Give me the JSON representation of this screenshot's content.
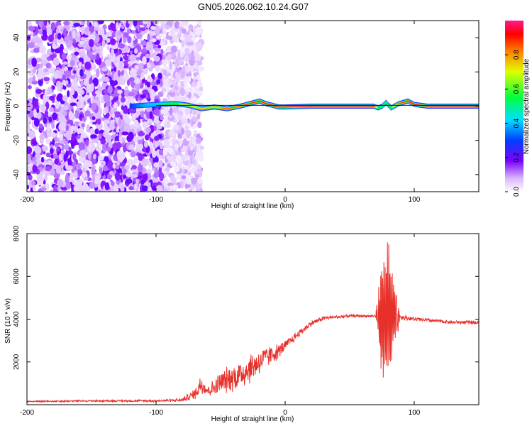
{
  "title": "GN05.2026.062.10.24.G07",
  "colorbar": {
    "label": "Normalized spectral amplitude",
    "ticks": [
      "0.0",
      "0.2",
      "0.4",
      "0.6",
      "0.8"
    ],
    "tick_values": [
      0.0,
      0.2,
      0.4,
      0.6,
      0.8
    ],
    "range": [
      0,
      1
    ]
  },
  "chart_data": [
    {
      "type": "heatmap",
      "title": "GN05.2026.062.10.24.G07",
      "xlabel": "Height of straight line (km)",
      "ylabel": "Frequency (Hz)",
      "xlim": [
        -200,
        150
      ],
      "ylim": [
        -50,
        50
      ],
      "x_ticks": [
        -200,
        -100,
        0,
        100
      ],
      "x_tick_labels": [
        "-200",
        "-100",
        "0",
        "100"
      ],
      "y_ticks": [
        -40,
        -20,
        0,
        20,
        40
      ],
      "y_tick_labels": [
        "-40",
        "-20",
        "0",
        "20",
        "40"
      ],
      "grid": false,
      "noise_region_x": [
        -200,
        -80
      ],
      "ridge": {
        "x": [
          -120,
          -100,
          -85,
          -75,
          -65,
          -55,
          -45,
          -35,
          -25,
          -20,
          -15,
          -10,
          -5,
          0,
          20,
          40,
          60,
          68,
          72,
          75,
          78,
          82,
          88,
          95,
          100,
          110,
          150
        ],
        "y": [
          0,
          1,
          1.5,
          0.5,
          -1.5,
          -0.5,
          -1.5,
          0,
          2,
          3,
          1.5,
          0.5,
          -0.5,
          -0.5,
          0,
          0,
          0,
          0,
          -1,
          0,
          2,
          -1,
          1.5,
          3,
          1,
          0,
          0
        ],
        "amplitude": [
          0.3,
          0.45,
          0.6,
          0.7,
          0.75,
          0.8,
          0.85,
          0.85,
          0.9,
          0.9,
          0.9,
          0.9,
          0.95,
          0.95,
          0.98,
          1.0,
          1.0,
          0.95,
          0.6,
          0.5,
          0.55,
          0.6,
          0.85,
          0.9,
          0.95,
          1.0,
          1.0
        ]
      },
      "colorbar_label": "Normalized spectral amplitude"
    },
    {
      "type": "line",
      "xlabel": "Height of straight line (km)",
      "ylabel": "SNR (10 * v/v)",
      "xlim": [
        -200,
        150
      ],
      "ylim": [
        0,
        8000
      ],
      "x_ticks": [
        -200,
        -100,
        0,
        100
      ],
      "x_tick_labels": [
        "-200",
        "-100",
        "0",
        "100"
      ],
      "y_ticks": [
        2000,
        4000,
        6000,
        8000
      ],
      "y_tick_labels": [
        "2000",
        "4000",
        "6000",
        "8000"
      ],
      "grid": false,
      "series": [
        {
          "name": "SNR",
          "color": "#e8302a",
          "x": [
            -200,
            -150,
            -100,
            -80,
            -70,
            -65,
            -60,
            -55,
            -50,
            -45,
            -40,
            -35,
            -30,
            -25,
            -20,
            -15,
            -10,
            -5,
            0,
            10,
            20,
            30,
            40,
            50,
            60,
            70,
            75,
            80,
            85,
            90,
            100,
            110,
            120,
            130,
            140,
            150
          ],
          "y": [
            150,
            180,
            180,
            220,
            500,
            1000,
            650,
            800,
            1050,
            1150,
            1300,
            1400,
            1600,
            1800,
            2000,
            2200,
            2350,
            2500,
            2750,
            3300,
            3800,
            4050,
            4100,
            4150,
            4150,
            4150,
            4200,
            4300,
            4250,
            4100,
            4000,
            3950,
            3900,
            3850,
            3850,
            3850
          ],
          "noise": [
            40,
            50,
            60,
            90,
            300,
            600,
            300,
            450,
            600,
            700,
            750,
            800,
            850,
            800,
            700,
            600,
            500,
            400,
            300,
            200,
            150,
            120,
            100,
            80,
            70,
            70,
            3300,
            3500,
            1500,
            150,
            120,
            110,
            100,
            100,
            100,
            100
          ]
        }
      ]
    }
  ]
}
